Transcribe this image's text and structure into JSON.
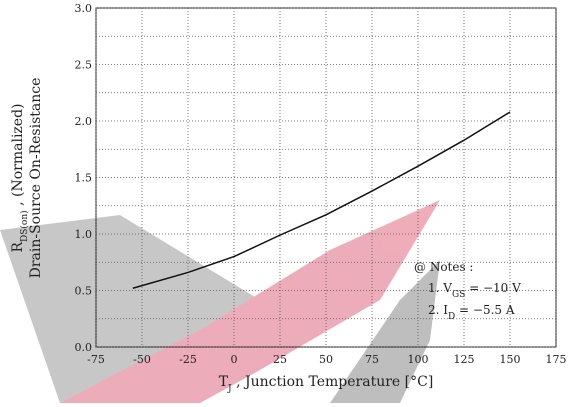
{
  "chart_data": {
    "type": "line",
    "x_label_parts": [
      "T",
      "J",
      " , Junction Temperature  [°C]"
    ],
    "y_label_parts": [
      "R",
      "DS(on)",
      " , (Normalized)"
    ],
    "y_label_line2": "Drain-Source On-Resistance",
    "notes": {
      "title": "@ Notes :",
      "line1": [
        "1. V",
        "GS",
        " = −10 V"
      ],
      "line2": [
        "2. I",
        "D",
        " = −5.5 A"
      ]
    },
    "x": [
      -55,
      -25,
      0,
      25,
      50,
      75,
      100,
      125,
      150
    ],
    "series": [
      {
        "name": "RDS(on)",
        "color": "#111111",
        "values": [
          0.52,
          0.66,
          0.8,
          0.99,
          1.17,
          1.38,
          1.6,
          1.83,
          2.08
        ]
      }
    ],
    "xlim": [
      -75,
      175
    ],
    "xticks": [
      -75,
      -50,
      -25,
      0,
      25,
      50,
      75,
      100,
      125,
      150,
      175
    ],
    "ylim": [
      0,
      3
    ],
    "yticks": [
      {
        "value": 0,
        "label": "0.0"
      },
      0.5,
      {
        "value": 1,
        "label": "1.0"
      },
      1.5,
      {
        "value": 2,
        "label": "2.0"
      },
      2.5,
      {
        "value": 3,
        "label": "3.0"
      }
    ],
    "yminorticks": [
      0.25,
      0.75,
      1.25,
      1.75,
      2.25,
      2.75
    ],
    "grid": true
  }
}
